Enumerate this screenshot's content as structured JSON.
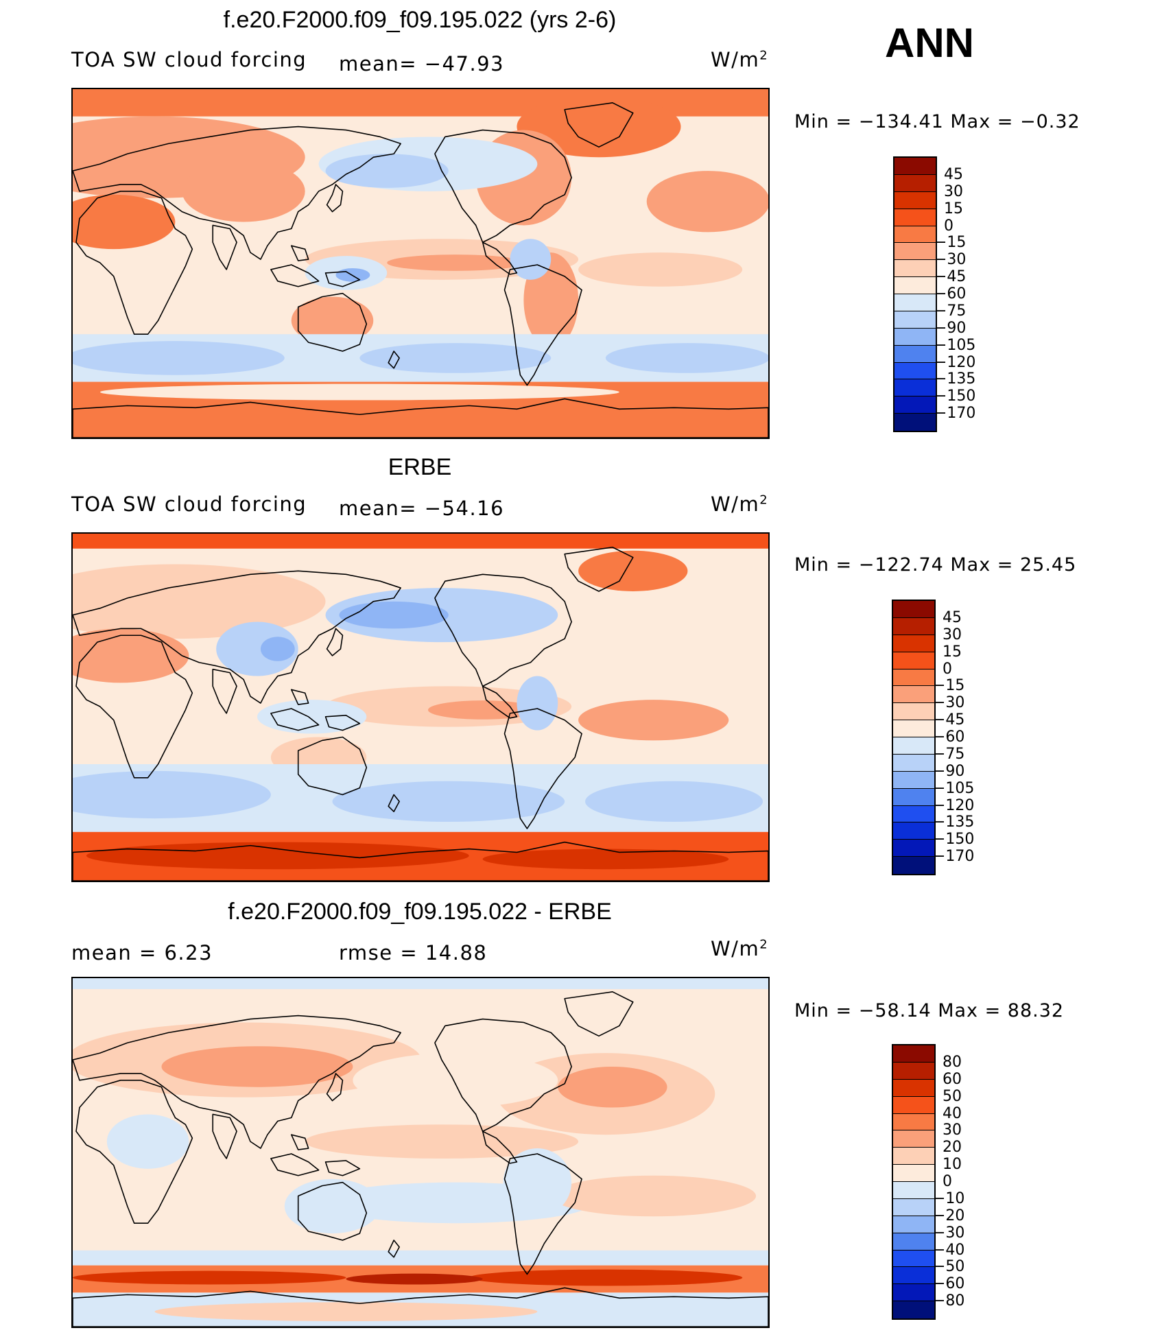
{
  "season_label": "ANN",
  "units_label": "W/m",
  "units_exponent": "2",
  "colors": {
    "land_outline": "#000000",
    "ocean_base": "#fde9dc"
  },
  "panels": [
    {
      "title": "f.e20.F2000.f09_f09.195.022 (yrs 2-6)",
      "left_text": "TOA SW cloud forcing",
      "center_text": "mean=  −47.93",
      "min_text": "Min  =  −134.41  Max  =    −0.32",
      "map_name": "model-map",
      "colorbar": {
        "labels": [
          "45",
          "30",
          "15",
          "0",
          "−15",
          "−30",
          "−45",
          "−60",
          "−75",
          "−90",
          "−105",
          "−120",
          "−135",
          "−150",
          "−170"
        ],
        "colors": [
          "#8b0a00",
          "#b61f00",
          "#d93300",
          "#f5521a",
          "#f87a44",
          "#faa07a",
          "#fdd0b6",
          "#fdebdc",
          "#d8e8f8",
          "#b8d2f8",
          "#8fb5f5",
          "#4f82ef",
          "#1f4ff0",
          "#0a2fd8",
          "#0318b8",
          "#00107a"
        ]
      }
    },
    {
      "title": "ERBE",
      "left_text": "TOA SW cloud forcing",
      "center_text": "mean=  −54.16",
      "min_text": "Min  =  −122.74  Max  =   25.45",
      "map_name": "erbe-map",
      "colorbar": {
        "labels": [
          "45",
          "30",
          "15",
          "0",
          "−15",
          "−30",
          "−45",
          "−60",
          "−75",
          "−90",
          "−105",
          "−120",
          "−135",
          "−150",
          "−170"
        ],
        "colors": [
          "#8b0a00",
          "#b61f00",
          "#d93300",
          "#f5521a",
          "#f87a44",
          "#faa07a",
          "#fdd0b6",
          "#fdebdc",
          "#d8e8f8",
          "#b8d2f8",
          "#8fb5f5",
          "#4f82ef",
          "#1f4ff0",
          "#0a2fd8",
          "#0318b8",
          "#00107a"
        ]
      }
    },
    {
      "title": "f.e20.F2000.f09_f09.195.022 - ERBE",
      "left_text": "mean  =     6.23",
      "center_text": "rmse  =    14.88",
      "min_text": "Min  =  −58.14  Max  =   88.32",
      "map_name": "difference-map",
      "colorbar": {
        "labels": [
          "80",
          "60",
          "50",
          "40",
          "30",
          "20",
          "10",
          "0",
          "−10",
          "−20",
          "−30",
          "−40",
          "−50",
          "−60",
          "−80"
        ],
        "colors": [
          "#8b0a00",
          "#b61f00",
          "#d93300",
          "#f5521a",
          "#f87a44",
          "#faa07a",
          "#fdd0b6",
          "#fdebdc",
          "#d8e8f8",
          "#b8d2f8",
          "#8fb5f5",
          "#4f82ef",
          "#1f4ff0",
          "#0a2fd8",
          "#0318b8",
          "#00107a"
        ]
      }
    }
  ]
}
